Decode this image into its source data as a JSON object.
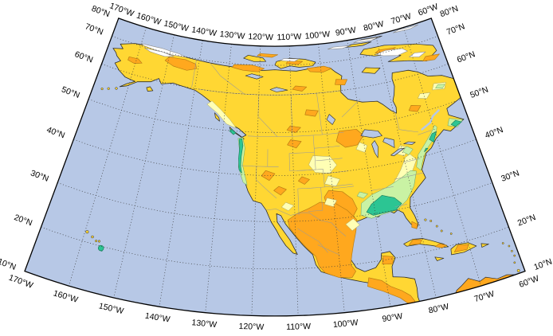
{
  "map": {
    "frame": {
      "top_longitude_labels": [
        "170°W",
        "160°W",
        "150°W",
        "140°W",
        "130°W",
        "120°W",
        "110°W",
        "100°W",
        "90°W",
        "80°W",
        "70°W",
        "60°W"
      ],
      "bottom_longitude_labels": [
        "170°W",
        "160°W",
        "150°W",
        "140°W",
        "130°W",
        "120°W",
        "110°W",
        "100°W",
        "90°W",
        "80°W",
        "70°W",
        "60°W"
      ],
      "left_latitude_labels": [
        "80°N",
        "70°N",
        "60°N",
        "50°N",
        "40°N",
        "30°N",
        "20°N",
        "10°N"
      ],
      "right_latitude_labels": [
        "80°N",
        "70°N",
        "60°N",
        "50°N",
        "40°N",
        "30°N",
        "20°N",
        "10°N"
      ]
    },
    "colors": {
      "ocean": "#b7c8e6",
      "land": "#ffd733",
      "orange": "#ffa81e",
      "pale_yellow": "#ffffb4",
      "pale_green": "#c9f2a4",
      "teal": "#2cc593",
      "no_data": "#ffffff",
      "coastline": "#2b2b2b",
      "graticule": "#3a3a3a",
      "frame": "#000000",
      "state_border": "#9a9a9a",
      "label_text": "#000000"
    }
  }
}
